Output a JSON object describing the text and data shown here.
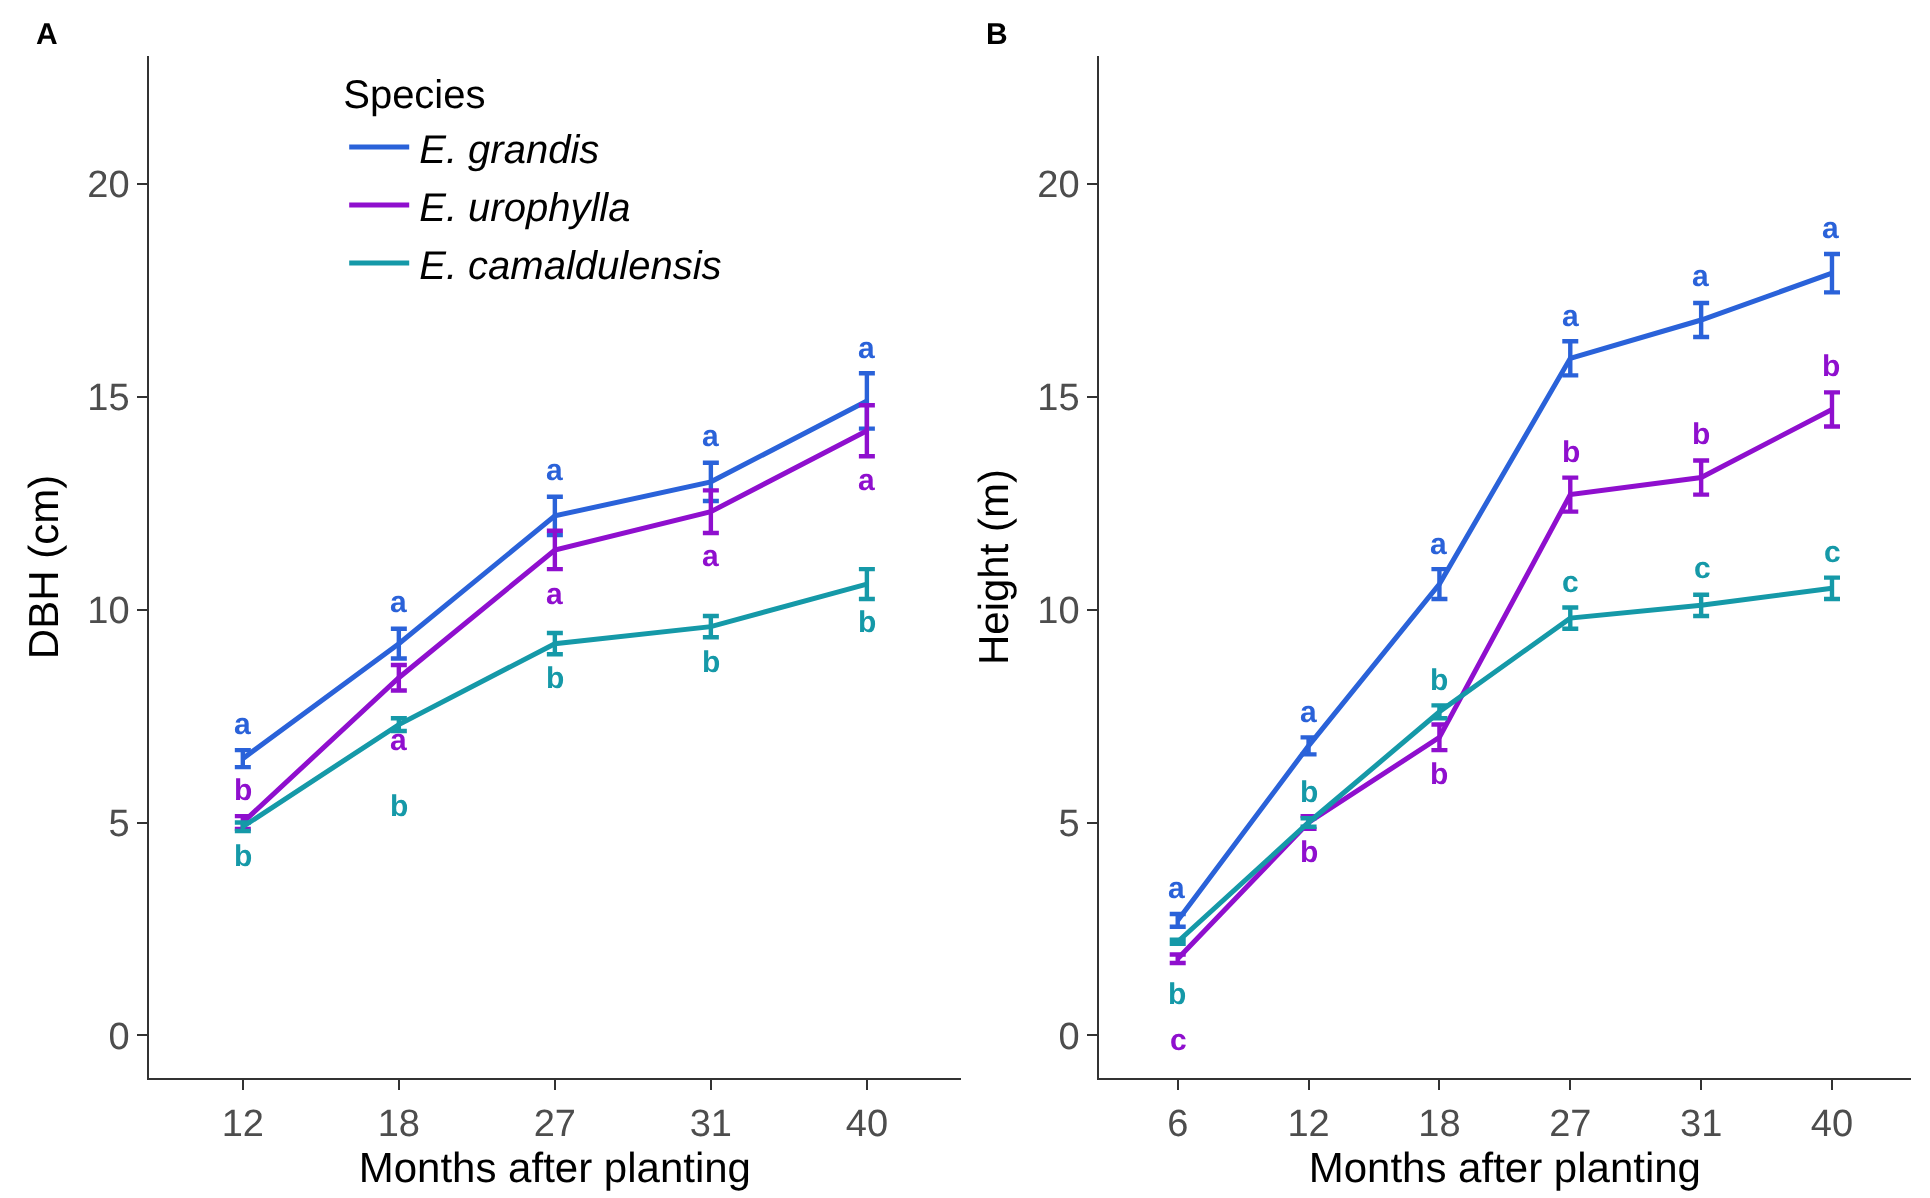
{
  "chart_data": [
    {
      "type": "line",
      "title": "A",
      "xlabel": "Months after planting",
      "ylabel": "DBH (cm)",
      "legend_title": "Species",
      "legend": "top left",
      "line_style": "solid",
      "ylim": [
        -1,
        23
      ],
      "yticks": [
        0,
        5,
        10,
        15,
        20
      ],
      "categories": [
        "12",
        "18",
        "27",
        "31",
        "40"
      ],
      "series": [
        {
          "name": "E. grandis",
          "color": "#2a62d9",
          "values": [
            6.5,
            9.2,
            12.2,
            13.0,
            14.9
          ],
          "errors": [
            0.2,
            0.35,
            0.45,
            0.45,
            0.65
          ],
          "value_labels": [
            "a",
            "a",
            "a",
            "a",
            "a"
          ]
        },
        {
          "name": "E. urophylla",
          "color": "#8f0fce",
          "values": [
            5.0,
            8.4,
            11.4,
            12.3,
            14.2
          ],
          "errors": [
            0.15,
            0.3,
            0.45,
            0.5,
            0.6
          ],
          "value_labels": [
            "b",
            "a",
            "a",
            "a",
            "a"
          ]
        },
        {
          "name": "E. camaldulensis",
          "color": "#1599a8",
          "values": [
            4.9,
            7.3,
            9.2,
            9.6,
            10.6
          ],
          "errors": [
            0.1,
            0.15,
            0.25,
            0.25,
            0.35
          ],
          "value_labels": [
            "b",
            "b",
            "b",
            "b",
            "b"
          ]
        }
      ]
    },
    {
      "type": "line",
      "title": "B",
      "xlabel": "Months after planting",
      "ylabel": "Height (m)",
      "line_style": "solid",
      "ylim": [
        -1,
        23
      ],
      "yticks": [
        0,
        5,
        10,
        15,
        20
      ],
      "categories": [
        "6",
        "12",
        "18",
        "27",
        "31",
        "40"
      ],
      "series": [
        {
          "color": "#2a62d9",
          "values": [
            2.7,
            6.8,
            10.6,
            15.9,
            16.8,
            17.9
          ],
          "errors": [
            0.15,
            0.2,
            0.35,
            0.4,
            0.4,
            0.45
          ],
          "value_labels": [
            "a",
            "a",
            "a",
            "a",
            "a",
            "a"
          ]
        },
        {
          "color": "#8f0fce",
          "values": [
            1.8,
            5.0,
            7.0,
            12.7,
            13.1,
            14.7
          ],
          "errors": [
            0.1,
            0.15,
            0.3,
            0.4,
            0.4,
            0.4
          ],
          "value_labels": [
            "c",
            "b",
            "b",
            "b",
            "b",
            "b"
          ]
        },
        {
          "color": "#1599a8",
          "values": [
            2.2,
            5.0,
            7.6,
            9.8,
            10.1,
            10.5
          ],
          "errors": [
            0.05,
            0.1,
            0.15,
            0.25,
            0.25,
            0.25
          ],
          "value_labels": [
            "b",
            "b",
            "b",
            "c",
            "c",
            "c"
          ]
        }
      ]
    }
  ]
}
